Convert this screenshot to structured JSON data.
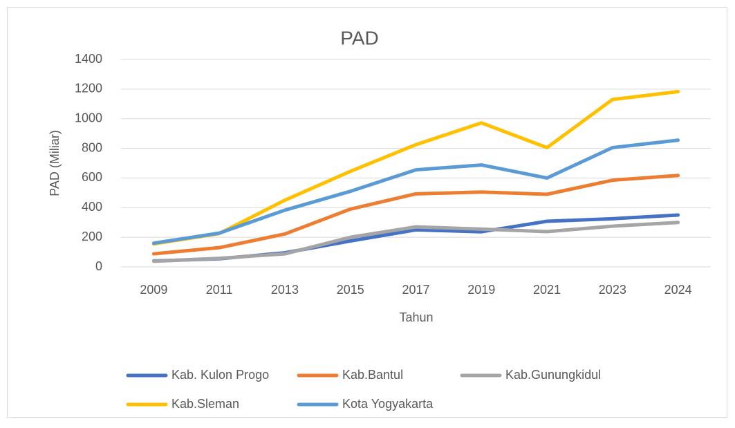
{
  "chart_data": {
    "type": "line",
    "title": "PAD",
    "x_label": "Tahun",
    "y_label": "PAD (Miliar)",
    "categories": [
      "2009",
      "2011",
      "2013",
      "2015",
      "2017",
      "2019",
      "2021",
      "2023",
      "2024"
    ],
    "series": [
      {
        "name": "Kab. Kulon Progo",
        "color": "#4472c4",
        "values": [
          40,
          55,
          95,
          175,
          250,
          237,
          308,
          325,
          350
        ]
      },
      {
        "name": "Kab.Bantul",
        "color": "#ed7d31",
        "values": [
          88,
          130,
          222,
          390,
          493,
          505,
          490,
          585,
          617
        ]
      },
      {
        "name": "Kab.Gunungkidul",
        "color": "#a5a5a5",
        "values": [
          38,
          58,
          88,
          200,
          270,
          255,
          238,
          275,
          300
        ]
      },
      {
        "name": "Kab.Sleman",
        "color": "#ffc000",
        "values": [
          155,
          225,
          450,
          645,
          825,
          972,
          805,
          1130,
          1183
        ]
      },
      {
        "name": "Kota Yogyakarta",
        "color": "#5b9bd5",
        "values": [
          160,
          228,
          383,
          510,
          655,
          688,
          600,
          805,
          855
        ]
      }
    ],
    "ylim": [
      0,
      1400
    ],
    "yticks": [
      0,
      200,
      400,
      600,
      800,
      1000,
      1200,
      1400
    ],
    "grid": true,
    "legend": "bottom"
  }
}
